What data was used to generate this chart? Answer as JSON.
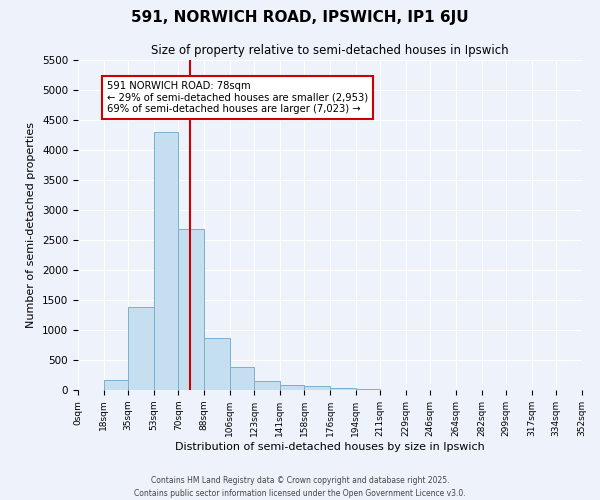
{
  "title": "591, NORWICH ROAD, IPSWICH, IP1 6JU",
  "subtitle": "Size of property relative to semi-detached houses in Ipswich",
  "xlabel": "Distribution of semi-detached houses by size in Ipswich",
  "ylabel": "Number of semi-detached properties",
  "bin_labels": [
    "0sqm",
    "18sqm",
    "35sqm",
    "53sqm",
    "70sqm",
    "88sqm",
    "106sqm",
    "123sqm",
    "141sqm",
    "158sqm",
    "176sqm",
    "194sqm",
    "211sqm",
    "229sqm",
    "246sqm",
    "264sqm",
    "282sqm",
    "299sqm",
    "317sqm",
    "334sqm",
    "352sqm"
  ],
  "bin_edges": [
    0,
    18,
    35,
    53,
    70,
    88,
    106,
    123,
    141,
    158,
    176,
    194,
    211,
    229,
    246,
    264,
    282,
    299,
    317,
    334,
    352
  ],
  "bar_heights": [
    5,
    175,
    1380,
    4300,
    2680,
    860,
    390,
    155,
    85,
    60,
    35,
    10,
    5,
    0,
    0,
    0,
    0,
    0,
    0,
    0
  ],
  "bar_color": "#c5dff0",
  "bar_edge_color": "#7ab0d0",
  "property_size": 78,
  "vline_color": "#cc0000",
  "annotation_box_edge_color": "#cc0000",
  "annotation_text_line1": "591 NORWICH ROAD: 78sqm",
  "annotation_text_line2": "← 29% of semi-detached houses are smaller (2,953)",
  "annotation_text_line3": "69% of semi-detached houses are larger (7,023) →",
  "ylim": [
    0,
    5500
  ],
  "yticks": [
    0,
    500,
    1000,
    1500,
    2000,
    2500,
    3000,
    3500,
    4000,
    4500,
    5000,
    5500
  ],
  "footer_line1": "Contains HM Land Registry data © Crown copyright and database right 2025.",
  "footer_line2": "Contains public sector information licensed under the Open Government Licence v3.0.",
  "bg_color": "#eef2fb",
  "plot_bg_color": "#eef2fb"
}
